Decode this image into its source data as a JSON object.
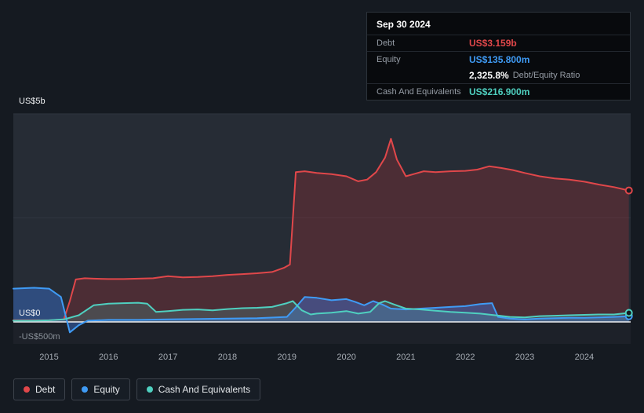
{
  "colors": {
    "background": "#151a21",
    "panel": "#262c35",
    "panel_below_zero": "#1d2129",
    "grid": "#2f3540",
    "zero_line": "#eef0f2",
    "debt": "#e0474a",
    "debt_fill": "rgba(200,50,55,0.24)",
    "equity": "#3f9bf5",
    "equity_fill": "rgba(63,130,245,0.38)",
    "cash": "#4fd0c0",
    "cash_fill": "rgba(79,208,192,0.18)"
  },
  "tooltip": {
    "date": "Sep 30 2024",
    "debt": {
      "label": "Debt",
      "value": "US$3.159b"
    },
    "equity": {
      "label": "Equity",
      "value": "US$135.800m"
    },
    "ratio": {
      "value": "2,325.8%",
      "label": "Debt/Equity Ratio"
    },
    "cash": {
      "label": "Cash And Equivalents",
      "value": "US$216.900m"
    }
  },
  "legend": [
    {
      "label": "Debt"
    },
    {
      "label": "Equity"
    },
    {
      "label": "Cash And Equivalents"
    }
  ],
  "chart_data": {
    "type": "area",
    "x_ticks": [
      2015,
      2016,
      2017,
      2018,
      2019,
      2020,
      2021,
      2022,
      2023,
      2024
    ],
    "y_axis": {
      "top_label": "US$5b",
      "zero_label": "US$0",
      "negative_label": "-US$500m",
      "unit": "US$ billions",
      "ylim": [
        -0.5,
        5
      ]
    },
    "x_range": [
      2014.4,
      2024.78
    ],
    "grid_values": [
      5,
      2.5
    ],
    "series": [
      {
        "name": "Debt",
        "key": "debt",
        "last_value_label": "US$3.159b",
        "points": [
          [
            2014.4,
            0.04
          ],
          [
            2014.75,
            0.04
          ],
          [
            2015.0,
            0.04
          ],
          [
            2015.25,
            0.06
          ],
          [
            2015.35,
            0.5
          ],
          [
            2015.45,
            1.02
          ],
          [
            2015.6,
            1.05
          ],
          [
            2015.75,
            1.04
          ],
          [
            2016.0,
            1.03
          ],
          [
            2016.25,
            1.03
          ],
          [
            2016.5,
            1.04
          ],
          [
            2016.75,
            1.05
          ],
          [
            2017.0,
            1.1
          ],
          [
            2017.25,
            1.07
          ],
          [
            2017.5,
            1.08
          ],
          [
            2017.75,
            1.1
          ],
          [
            2018.0,
            1.13
          ],
          [
            2018.25,
            1.15
          ],
          [
            2018.5,
            1.17
          ],
          [
            2018.75,
            1.2
          ],
          [
            2018.95,
            1.3
          ],
          [
            2019.05,
            1.38
          ],
          [
            2019.15,
            3.6
          ],
          [
            2019.3,
            3.62
          ],
          [
            2019.5,
            3.58
          ],
          [
            2019.75,
            3.55
          ],
          [
            2020.0,
            3.5
          ],
          [
            2020.2,
            3.38
          ],
          [
            2020.35,
            3.42
          ],
          [
            2020.5,
            3.6
          ],
          [
            2020.65,
            3.95
          ],
          [
            2020.75,
            4.4
          ],
          [
            2020.85,
            3.9
          ],
          [
            2021.0,
            3.5
          ],
          [
            2021.15,
            3.56
          ],
          [
            2021.3,
            3.62
          ],
          [
            2021.5,
            3.6
          ],
          [
            2021.75,
            3.62
          ],
          [
            2022.0,
            3.63
          ],
          [
            2022.2,
            3.66
          ],
          [
            2022.4,
            3.74
          ],
          [
            2022.6,
            3.7
          ],
          [
            2022.8,
            3.65
          ],
          [
            2023.0,
            3.58
          ],
          [
            2023.25,
            3.5
          ],
          [
            2023.5,
            3.45
          ],
          [
            2023.75,
            3.42
          ],
          [
            2024.0,
            3.37
          ],
          [
            2024.25,
            3.3
          ],
          [
            2024.5,
            3.24
          ],
          [
            2024.75,
            3.159
          ]
        ]
      },
      {
        "name": "Equity",
        "key": "equity",
        "last_value_label": "US$135.800m",
        "points": [
          [
            2014.4,
            0.8
          ],
          [
            2014.75,
            0.82
          ],
          [
            2015.0,
            0.8
          ],
          [
            2015.2,
            0.6
          ],
          [
            2015.35,
            -0.25
          ],
          [
            2015.5,
            -0.08
          ],
          [
            2015.65,
            0.03
          ],
          [
            2016.0,
            0.05
          ],
          [
            2016.5,
            0.05
          ],
          [
            2017.0,
            0.06
          ],
          [
            2017.5,
            0.07
          ],
          [
            2018.0,
            0.08
          ],
          [
            2018.5,
            0.09
          ],
          [
            2019.0,
            0.12
          ],
          [
            2019.15,
            0.35
          ],
          [
            2019.3,
            0.6
          ],
          [
            2019.5,
            0.58
          ],
          [
            2019.75,
            0.52
          ],
          [
            2020.0,
            0.55
          ],
          [
            2020.15,
            0.48
          ],
          [
            2020.3,
            0.4
          ],
          [
            2020.45,
            0.5
          ],
          [
            2020.6,
            0.42
          ],
          [
            2020.75,
            0.32
          ],
          [
            2021.0,
            0.3
          ],
          [
            2021.25,
            0.32
          ],
          [
            2021.5,
            0.34
          ],
          [
            2021.75,
            0.36
          ],
          [
            2022.0,
            0.38
          ],
          [
            2022.25,
            0.43
          ],
          [
            2022.45,
            0.45
          ],
          [
            2022.55,
            0.12
          ],
          [
            2022.75,
            0.08
          ],
          [
            2023.0,
            0.06
          ],
          [
            2023.25,
            0.08
          ],
          [
            2023.5,
            0.09
          ],
          [
            2023.75,
            0.1
          ],
          [
            2024.0,
            0.1
          ],
          [
            2024.25,
            0.11
          ],
          [
            2024.5,
            0.12
          ],
          [
            2024.75,
            0.1358
          ]
        ]
      },
      {
        "name": "Cash And Equivalents",
        "key": "cash",
        "last_value_label": "US$216.900m",
        "points": [
          [
            2014.4,
            0.03
          ],
          [
            2014.75,
            0.03
          ],
          [
            2015.0,
            0.04
          ],
          [
            2015.25,
            0.06
          ],
          [
            2015.5,
            0.16
          ],
          [
            2015.75,
            0.4
          ],
          [
            2016.0,
            0.44
          ],
          [
            2016.25,
            0.45
          ],
          [
            2016.5,
            0.46
          ],
          [
            2016.65,
            0.44
          ],
          [
            2016.8,
            0.24
          ],
          [
            2017.0,
            0.26
          ],
          [
            2017.25,
            0.29
          ],
          [
            2017.5,
            0.3
          ],
          [
            2017.75,
            0.28
          ],
          [
            2018.0,
            0.31
          ],
          [
            2018.25,
            0.33
          ],
          [
            2018.5,
            0.34
          ],
          [
            2018.75,
            0.36
          ],
          [
            2019.0,
            0.45
          ],
          [
            2019.1,
            0.5
          ],
          [
            2019.25,
            0.28
          ],
          [
            2019.4,
            0.18
          ],
          [
            2019.5,
            0.2
          ],
          [
            2019.75,
            0.22
          ],
          [
            2020.0,
            0.26
          ],
          [
            2020.2,
            0.2
          ],
          [
            2020.4,
            0.24
          ],
          [
            2020.55,
            0.45
          ],
          [
            2020.65,
            0.5
          ],
          [
            2020.8,
            0.42
          ],
          [
            2021.0,
            0.32
          ],
          [
            2021.25,
            0.3
          ],
          [
            2021.5,
            0.27
          ],
          [
            2021.75,
            0.24
          ],
          [
            2022.0,
            0.22
          ],
          [
            2022.25,
            0.2
          ],
          [
            2022.5,
            0.16
          ],
          [
            2022.75,
            0.12
          ],
          [
            2023.0,
            0.11
          ],
          [
            2023.25,
            0.14
          ],
          [
            2023.5,
            0.15
          ],
          [
            2023.75,
            0.16
          ],
          [
            2024.0,
            0.17
          ],
          [
            2024.25,
            0.18
          ],
          [
            2024.5,
            0.18
          ],
          [
            2024.75,
            0.2169
          ]
        ]
      }
    ]
  }
}
